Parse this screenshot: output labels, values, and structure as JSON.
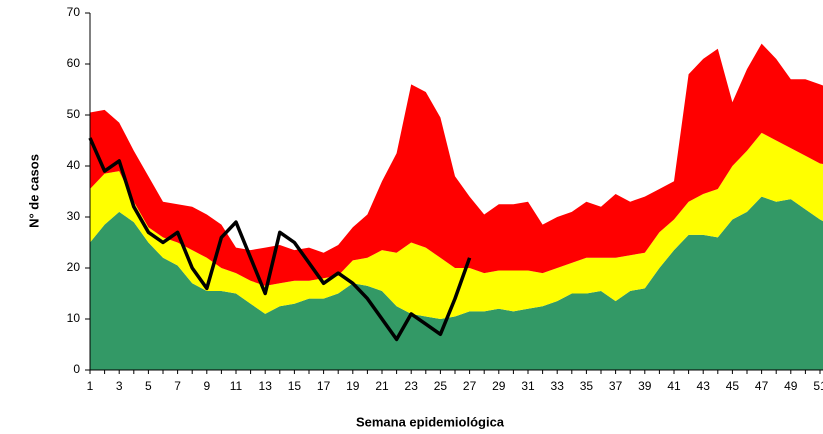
{
  "chart_data": {
    "type": "stacked_area_line",
    "y_label": "N° de casos",
    "x_label": "Semana epidemiológica",
    "categories": [
      1,
      null,
      3,
      null,
      5,
      null,
      7,
      null,
      9,
      null,
      11,
      null,
      13,
      null,
      15,
      null,
      17,
      null,
      19,
      null,
      21,
      null,
      23,
      null,
      25,
      null,
      27,
      null,
      29,
      null,
      31,
      null,
      33,
      null,
      35,
      null,
      37,
      null,
      39,
      null,
      41,
      null,
      43,
      null,
      45,
      null,
      47,
      null,
      49,
      null,
      51,
      null
    ],
    "ylim": [
      0,
      70
    ],
    "yticks": [
      0,
      10,
      20,
      30,
      40,
      50,
      60,
      70
    ],
    "areas": [
      {
        "color": "#339966",
        "values": [
          25,
          28.5,
          31,
          29,
          25,
          22,
          20.5,
          17,
          15.5,
          15.5,
          15,
          13,
          11,
          12.5,
          13,
          14,
          14,
          15,
          17,
          16.5,
          15.5,
          12.5,
          11,
          10.5,
          10,
          10.5,
          11.5,
          11.5,
          12,
          11.5,
          12,
          12.5,
          13.5,
          15,
          15,
          15.5,
          13.5,
          15.5,
          16,
          20,
          23.5,
          26.5,
          26.5,
          26,
          29.5,
          31,
          34,
          33,
          33.5,
          31.5,
          29.5,
          28
        ]
      },
      {
        "color": "#ffff00",
        "values": [
          10.5,
          10,
          8,
          4,
          3,
          4,
          4.5,
          6.5,
          6.5,
          4.5,
          4,
          4.5,
          5.5,
          4.5,
          4.5,
          3.5,
          4,
          3.5,
          4.5,
          5.5,
          8,
          10.5,
          14,
          13.5,
          12,
          9.5,
          8.5,
          7.5,
          7.5,
          8,
          7.5,
          6.5,
          6.5,
          6,
          7,
          6.5,
          8.5,
          7,
          7,
          7,
          6,
          6.5,
          8,
          9.5,
          10.5,
          12,
          12.5,
          12,
          10,
          10.5,
          11,
          12
        ]
      },
      {
        "color": "#ff0000",
        "values": [
          15,
          12.5,
          9.5,
          10,
          10,
          7,
          7.5,
          8.5,
          8.5,
          8.5,
          5,
          6,
          7.5,
          7.5,
          6,
          6.5,
          5,
          6,
          6.5,
          8.5,
          13.5,
          19.5,
          31,
          30.5,
          27.5,
          18,
          14,
          11.5,
          13,
          13,
          13.5,
          9.5,
          10,
          10,
          11,
          10,
          12.5,
          10.5,
          11,
          8.5,
          7.5,
          25,
          26.5,
          27.5,
          12.5,
          16,
          17.5,
          16,
          13.5,
          15,
          15.5,
          15
        ]
      }
    ],
    "line": {
      "color": "#000000",
      "values": [
        45.5,
        39,
        41,
        32,
        27,
        25,
        27,
        20,
        16,
        26,
        29,
        22,
        15,
        27,
        25,
        21,
        17,
        19,
        17,
        14,
        10,
        6,
        11,
        9,
        7,
        14,
        22,
        null,
        null,
        null,
        null,
        null,
        null,
        null,
        null,
        null,
        null,
        null,
        null,
        null,
        null,
        null,
        null,
        null,
        null,
        null,
        null,
        null,
        null,
        null,
        null,
        null
      ]
    }
  }
}
